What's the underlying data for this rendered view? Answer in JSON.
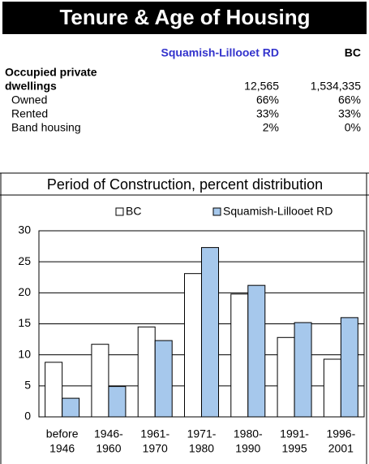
{
  "header": {
    "title": "Tenure & Age of Housing"
  },
  "table": {
    "columns": [
      "Squamish-Lillooet RD",
      "BC"
    ],
    "rows": [
      {
        "label": [
          "Occupied private",
          "dwellings"
        ],
        "values": [
          "12,565",
          "1,534,335"
        ]
      },
      {
        "label": [
          "Owned"
        ],
        "values": [
          "66%",
          "66%"
        ]
      },
      {
        "label": [
          "Rented"
        ],
        "values": [
          "33%",
          "33%"
        ]
      },
      {
        "label": [
          "Band housing"
        ],
        "values": [
          "2%",
          "0%"
        ]
      }
    ]
  },
  "chart_data": {
    "type": "bar",
    "title": "Period of Construction, percent distribution",
    "categories": [
      [
        "before",
        "1946"
      ],
      [
        "1946-",
        "1960"
      ],
      [
        "1961-",
        "1970"
      ],
      [
        "1971-",
        "1980"
      ],
      [
        "1980-",
        "1990"
      ],
      [
        "1991-",
        "1995"
      ],
      [
        "1996-",
        "2001"
      ]
    ],
    "series": [
      {
        "name": "BC",
        "color": "#ffffff",
        "values": [
          8.8,
          11.7,
          14.5,
          23.1,
          19.8,
          12.8,
          9.3
        ]
      },
      {
        "name": "Squamish-Lillooet RD",
        "color": "#a6c8ec",
        "values": [
          3.0,
          4.9,
          12.3,
          27.3,
          21.2,
          15.2,
          16.0
        ]
      }
    ],
    "ylim": [
      0,
      30
    ],
    "yticks": [
      0,
      5,
      10,
      15,
      20,
      25,
      30
    ],
    "grid": true,
    "legend": "top"
  }
}
